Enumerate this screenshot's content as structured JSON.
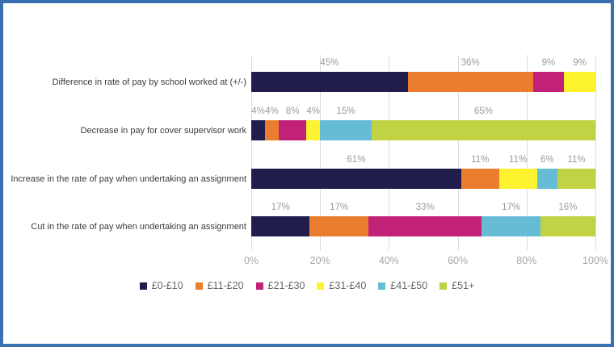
{
  "chart_data": {
    "type": "bar",
    "orientation": "horizontal",
    "stacked": true,
    "unit": "%",
    "categories": [
      "Difference in rate of pay by school worked at (+/-)",
      "Decrease in pay for cover supervisor work",
      "Increase in the rate of pay when undertaking an assignment",
      "Cut in the rate of pay when undertaking an assignment"
    ],
    "series": [
      {
        "name": "£0-£10",
        "color": "#201c4b",
        "values": [
          45,
          4,
          61,
          17
        ]
      },
      {
        "name": "£11-£20",
        "color": "#eb7d2e",
        "values": [
          36,
          4,
          11,
          17
        ]
      },
      {
        "name": "£21-£30",
        "color": "#c12277",
        "values": [
          9,
          8,
          null,
          33
        ]
      },
      {
        "name": "£31-£40",
        "color": "#fdf32f",
        "values": [
          9,
          4,
          11,
          null
        ]
      },
      {
        "name": "£41-£50",
        "color": "#67bcd5",
        "values": [
          null,
          15,
          6,
          17
        ]
      },
      {
        "name": "£51+",
        "color": "#c1d245",
        "values": [
          null,
          65,
          11,
          16
        ]
      }
    ],
    "x_ticks": [
      "0%",
      "20%",
      "40%",
      "60%",
      "80%",
      "100%"
    ],
    "xlim": [
      0,
      100
    ],
    "grid": true,
    "legend_position": "bottom"
  },
  "style": {
    "frame_border_color": "#3a70b2",
    "gridline_color": "#dcdcdc",
    "category_label_color": "#3b3b3b",
    "bar_value_label_color": "#9b9b9b",
    "axis_tick_color": "#a8a8a8",
    "legend_text_color": "#666666"
  }
}
